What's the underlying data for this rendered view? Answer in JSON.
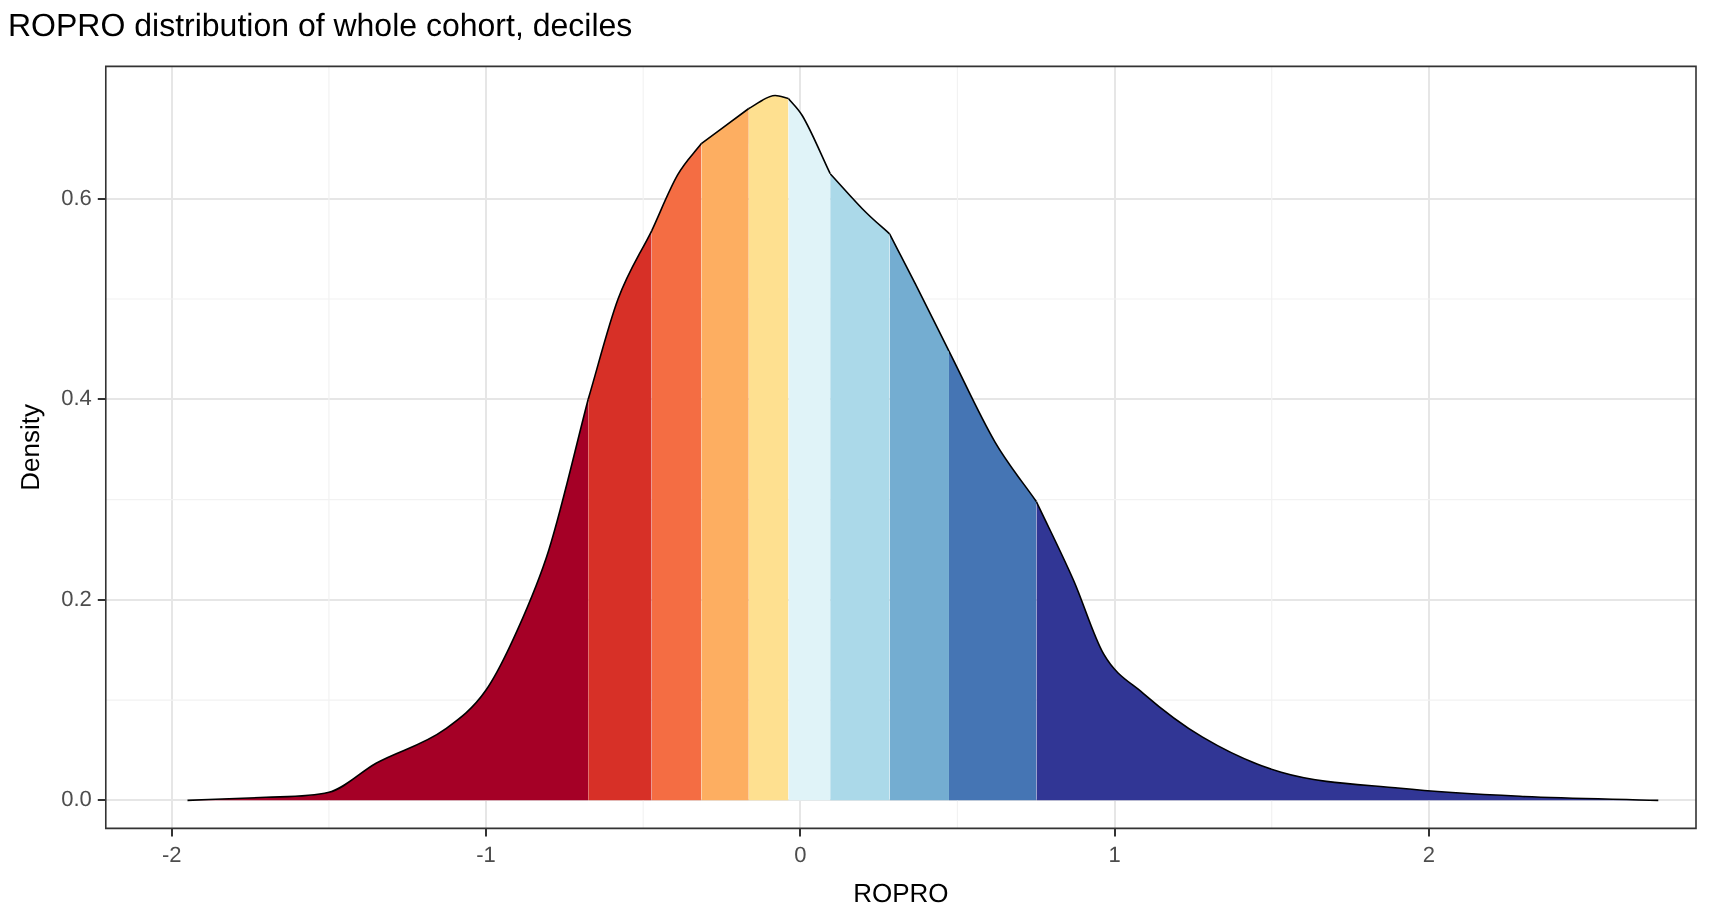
{
  "chart_data": {
    "type": "area",
    "title": "ROPRO distribution of whole cohort, deciles",
    "xlabel": "ROPRO",
    "ylabel": "Density",
    "xlim": [
      -2.21,
      2.85
    ],
    "ylim": [
      -0.028,
      0.732
    ],
    "xticks": [
      -2,
      -1,
      0,
      1,
      2
    ],
    "yticks": [
      {
        "value": 0,
        "label": "0.0"
      },
      {
        "value": 0.2,
        "label": "0.2"
      },
      {
        "value": 0.4,
        "label": "0.4"
      },
      {
        "value": 0.6,
        "label": "0.6"
      }
    ],
    "grid": true,
    "legend": false,
    "series": [
      {
        "color": "#a50026",
        "x": [
          -1.95,
          -1.7,
          -1.5,
          -1.35,
          -1.13,
          -1.0,
          -0.9,
          -0.8,
          -0.675
        ],
        "values": [
          0,
          0.003,
          0.008,
          0.037,
          0.071,
          0.11,
          0.17,
          0.25,
          0.4
        ]
      },
      {
        "color": "#d73027",
        "x": [
          -0.675,
          -0.58,
          -0.473
        ],
        "values": [
          0.4,
          0.5,
          0.568
        ]
      },
      {
        "color": "#f46d43",
        "x": [
          -0.473,
          -0.39,
          -0.315
        ],
        "values": [
          0.568,
          0.624,
          0.655
        ]
      },
      {
        "color": "#fdae61",
        "x": [
          -0.315,
          -0.164
        ],
        "values": [
          0.655,
          0.69
        ]
      },
      {
        "color": "#fee090",
        "x": [
          -0.164,
          -0.08,
          -0.038
        ],
        "values": [
          0.69,
          0.703,
          0.7
        ]
      },
      {
        "color": "#e0f3f8",
        "x": [
          -0.038,
          0.006,
          0.095
        ],
        "values": [
          0.7,
          0.683,
          0.625
        ]
      },
      {
        "color": "#abd9e9",
        "x": [
          0.095,
          0.21,
          0.284
        ],
        "values": [
          0.625,
          0.586,
          0.565
        ]
      },
      {
        "color": "#74add1",
        "x": [
          0.284,
          0.366,
          0.473
        ],
        "values": [
          0.565,
          0.515,
          0.448
        ]
      },
      {
        "color": "#4575b4",
        "x": [
          0.473,
          0.62,
          0.751
        ],
        "values": [
          0.448,
          0.357,
          0.298
        ]
      },
      {
        "color": "#313695",
        "x": [
          0.751,
          0.87,
          0.965,
          1.09,
          1.28,
          1.53,
          1.91,
          2.29,
          2.73
        ],
        "values": [
          0.298,
          0.219,
          0.146,
          0.107,
          0.063,
          0.028,
          0.012,
          0.004,
          0
        ]
      }
    ]
  }
}
